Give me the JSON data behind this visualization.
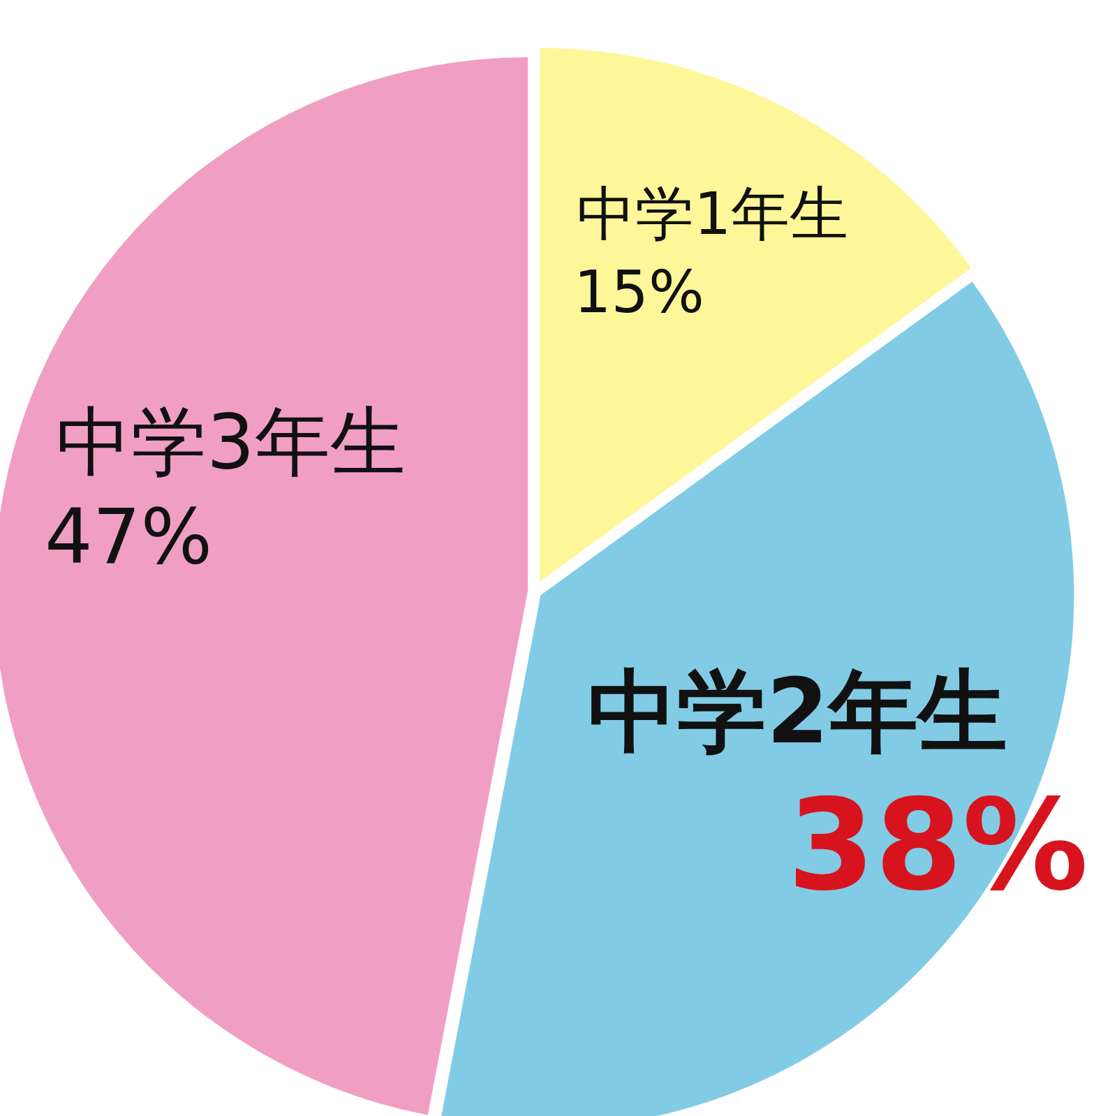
{
  "chart_data": {
    "type": "pie",
    "categories": [
      "中学1年生",
      "中学2年生",
      "中学3年生"
    ],
    "values": [
      15,
      38,
      47
    ],
    "colors": [
      "#fdf799",
      "#82cbe5",
      "#f09fc2"
    ],
    "value_labels": [
      "15%",
      "38%",
      "47%"
    ]
  }
}
